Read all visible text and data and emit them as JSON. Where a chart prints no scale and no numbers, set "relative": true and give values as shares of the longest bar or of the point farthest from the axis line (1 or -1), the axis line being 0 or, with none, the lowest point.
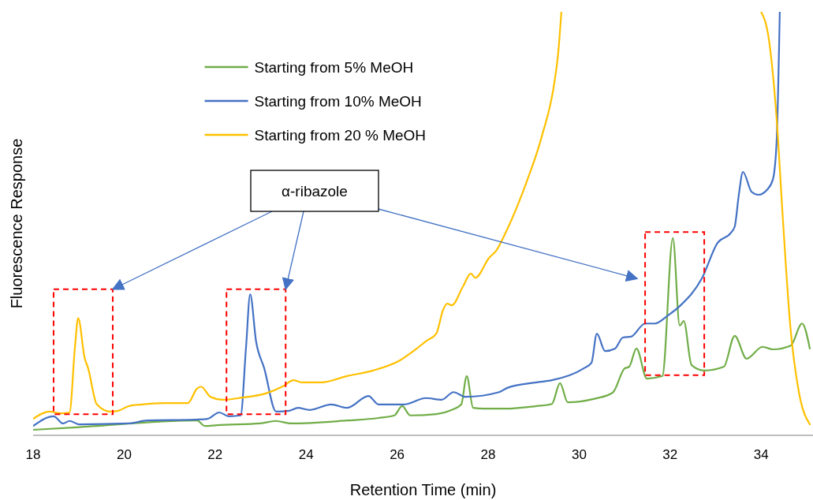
{
  "chart_data": {
    "type": "line",
    "relative": true,
    "xlabel": "Retention Time (min)",
    "ylabel": "Fluorescence Response",
    "xlim": [
      18,
      35.14
    ],
    "xticks": [
      18,
      20,
      22,
      24,
      26,
      28,
      30,
      32,
      34
    ],
    "grid": false,
    "legend": "top",
    "marker": "none",
    "line_style": "solid",
    "annotations": [
      "α-ribazole"
    ],
    "series": [
      {
        "name": "Starting from 5% MeOH",
        "color": "#70ad47",
        "x": [
          18,
          18.95,
          21.6,
          21.78,
          22.04,
          22.99,
          23.33,
          23.68,
          24.9,
          25.59,
          25.94,
          26.11,
          26.29,
          26.86,
          27.2,
          27.41,
          27.53,
          27.67,
          27.9,
          28.36,
          29.06,
          29.4,
          29.58,
          29.75,
          30.32,
          30.74,
          31,
          31.1,
          31.26,
          31.49,
          31.83,
          32.06,
          32.21,
          32.3,
          32.47,
          32.75,
          33.18,
          33.42,
          33.68,
          34.03,
          34.26,
          34.65,
          34.9,
          35.07
        ],
        "values": [
          0.013,
          0.019,
          0.035,
          0.022,
          0.024,
          0.028,
          0.034,
          0.028,
          0.035,
          0.041,
          0.047,
          0.069,
          0.047,
          0.05,
          0.06,
          0.073,
          0.14,
          0.065,
          0.063,
          0.063,
          0.069,
          0.074,
          0.123,
          0.078,
          0.086,
          0.101,
          0.158,
          0.162,
          0.205,
          0.134,
          0.14,
          0.466,
          0.259,
          0.27,
          0.166,
          0.153,
          0.162,
          0.235,
          0.181,
          0.209,
          0.203,
          0.212,
          0.264,
          0.205
        ]
      },
      {
        "name": "Starting from 10% MeOH",
        "color": "#4472c4",
        "x": [
          18,
          18.45,
          18.66,
          18.8,
          19.01,
          20.1,
          20.51,
          21.55,
          21.83,
          22.09,
          22.3,
          22.56,
          22.68,
          22.77,
          22.9,
          23.08,
          23.34,
          23.63,
          23.82,
          24.08,
          24.55,
          24.9,
          25.37,
          25.59,
          26.16,
          26.63,
          26.98,
          27.24,
          27.5,
          28.24,
          28.42,
          29.06,
          29.4,
          30.1,
          30.27,
          30.39,
          30.57,
          30.79,
          30.96,
          31.14,
          31.45,
          31.66,
          31.95,
          32.23,
          32.7,
          33.04,
          33.34,
          33.42,
          33.51,
          33.6,
          33.79,
          33.94,
          34.14,
          34.26,
          34.34,
          34.41
        ],
        "values": [
          0.022,
          0.045,
          0.028,
          0.034,
          0.026,
          0.028,
          0.035,
          0.037,
          0.039,
          0.054,
          0.045,
          0.047,
          0.209,
          0.333,
          0.222,
          0.158,
          0.056,
          0.058,
          0.065,
          0.06,
          0.073,
          0.065,
          0.093,
          0.073,
          0.073,
          0.088,
          0.084,
          0.102,
          0.091,
          0.102,
          0.112,
          0.125,
          0.13,
          0.158,
          0.171,
          0.24,
          0.199,
          0.205,
          0.231,
          0.233,
          0.264,
          0.264,
          0.283,
          0.307,
          0.371,
          0.454,
          0.479,
          0.493,
          0.568,
          0.622,
          0.575,
          0.568,
          0.581,
          0.605,
          0.693,
          1
        ]
      },
      {
        "name": "Starting from 20 % MeOH",
        "color": "#ffc000",
        "x": [
          18,
          18.36,
          18.61,
          18.8,
          18.92,
          18.99,
          19.13,
          19.21,
          19.4,
          19.7,
          19.87,
          20.1,
          20.39,
          20.86,
          21.4,
          21.6,
          21.69,
          21.9,
          22.18,
          22.59,
          23.11,
          23.51,
          23.72,
          23.91,
          24.33,
          24.9,
          25.47,
          26.06,
          26.41,
          26.63,
          26.86,
          27.01,
          27.1,
          27.2,
          27.45,
          27.62,
          27.72,
          28.02,
          28.19,
          28.36,
          28.83,
          29.18,
          29.46,
          29.54,
          29.61,
          31.8,
          34,
          34.17,
          34.34,
          34.48,
          34.64,
          34.83,
          35.07
        ],
        "values": [
          0.039,
          0.056,
          0.052,
          0.054,
          0.209,
          0.277,
          0.184,
          0.158,
          0.073,
          0.056,
          0.058,
          0.069,
          0.073,
          0.076,
          0.076,
          0.11,
          0.115,
          0.091,
          0.084,
          0.089,
          0.099,
          0.117,
          0.13,
          0.125,
          0.125,
          0.14,
          0.153,
          0.177,
          0.203,
          0.222,
          0.24,
          0.296,
          0.311,
          0.307,
          0.352,
          0.382,
          0.372,
          0.419,
          0.438,
          0.473,
          0.594,
          0.706,
          0.836,
          0.903,
          1,
          null,
          1,
          0.935,
          0.749,
          0.507,
          0.259,
          0.102,
          0.026
        ]
      }
    ]
  }
}
